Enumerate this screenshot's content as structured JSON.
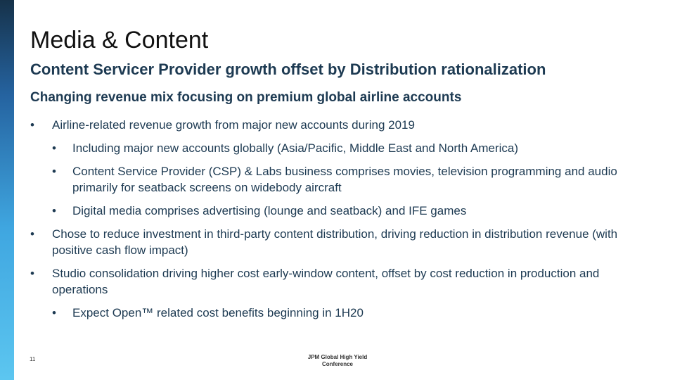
{
  "slide": {
    "title": "Media & Content",
    "subtitle": "Content Servicer Provider growth offset by Distribution rationalization",
    "section_heading": "Changing revenue mix focusing on premium global airline accounts",
    "bullet_glyph": "•",
    "bullets": [
      "Airline-related revenue growth from major new accounts during 2019",
      "Including major new accounts globally (Asia/Pacific, Middle East and North America)",
      "Content Service Provider (CSP) & Labs business comprises movies, television programming and audio primarily for seatback screens on widebody aircraft",
      "Digital media comprises advertising (lounge and seatback) and IFE games",
      "Chose to reduce investment in third-party content distribution, driving reduction in distribution revenue (with positive cash flow impact)",
      "Studio consolidation driving higher cost early-window content, offset by cost reduction in production and operations",
      "Expect Open™ related cost benefits beginning in 1H20"
    ]
  },
  "footer": {
    "page_number": "11",
    "conference_line1": "JPM Global High Yield",
    "conference_line2": "Conference"
  },
  "colors": {
    "text_navy": "#1d3a52",
    "title": "#111111",
    "side_bar_top": "#16324a",
    "side_bar_bottom": "#5cc6f0"
  }
}
